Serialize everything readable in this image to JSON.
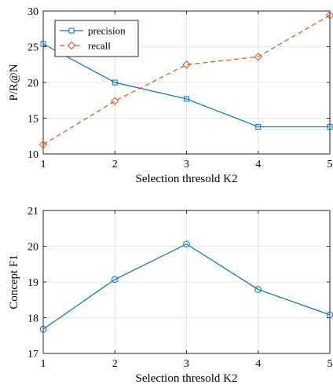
{
  "chart_data": [
    {
      "type": "line",
      "xlabel": "Selection thresold K2",
      "ylabel": "P/R@N",
      "x": [
        1,
        2,
        3,
        4,
        5
      ],
      "xlim": [
        1,
        5
      ],
      "ylim": [
        10,
        30
      ],
      "xticks": [
        "1",
        "2",
        "3",
        "4",
        "5"
      ],
      "yticks": [
        "10",
        "15",
        "20",
        "25",
        "30"
      ],
      "grid": true,
      "legend": "top-left",
      "series": [
        {
          "name": "precision",
          "values": [
            25.4,
            20.0,
            17.7,
            13.8,
            13.8
          ],
          "color": "#0072BD",
          "marker": "square",
          "line": "solid"
        },
        {
          "name": "recall",
          "values": [
            11.3,
            17.4,
            22.5,
            23.6,
            29.4
          ],
          "color": "#D95319",
          "marker": "diamond",
          "line": "dashed"
        }
      ]
    },
    {
      "type": "line",
      "xlabel": "Selection thresold K2",
      "ylabel": "Concept F1",
      "x": [
        1,
        2,
        3,
        4,
        5
      ],
      "xlim": [
        1,
        5
      ],
      "ylim": [
        17,
        21
      ],
      "xticks": [
        "1",
        "2",
        "3",
        "4",
        "5"
      ],
      "yticks": [
        "17",
        "18",
        "19",
        "20",
        "21"
      ],
      "grid": true,
      "series": [
        {
          "values": [
            17.68,
            19.07,
            20.06,
            18.79,
            18.08
          ],
          "color": "#0072BD",
          "marker": "circle",
          "line": "solid"
        }
      ]
    }
  ]
}
